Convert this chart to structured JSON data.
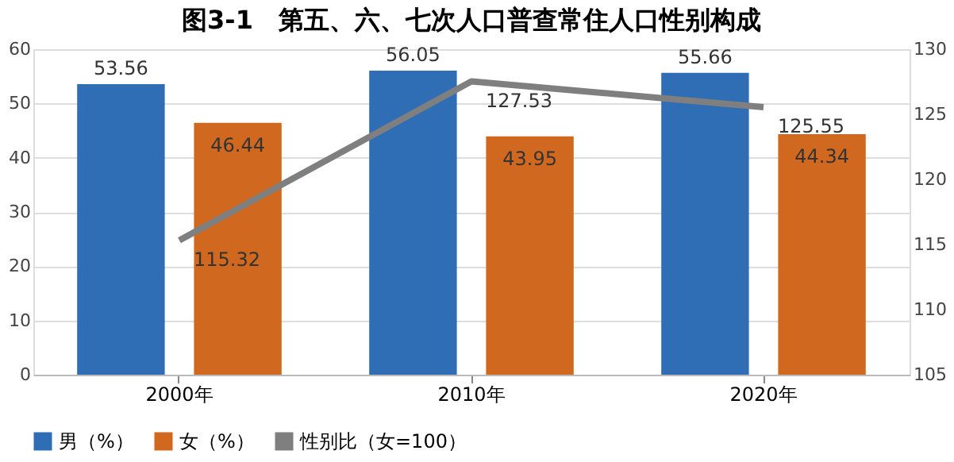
{
  "chart_data": {
    "type": "bar",
    "title": "图3-1　第五、六、七次人口普查常住人口性别构成",
    "categories": [
      "2000年",
      "2010年",
      "2020年"
    ],
    "series": [
      {
        "name": "男（%）",
        "color": "#2f6eb5",
        "values": [
          53.56,
          56.05,
          55.66
        ]
      },
      {
        "name": "女（%）",
        "color": "#d0691f",
        "values": [
          46.44,
          43.95,
          44.34
        ]
      },
      {
        "name": "性别比（女=100）",
        "type": "line",
        "axis": "y2",
        "color": "#7f7f7f",
        "values": [
          115.32,
          127.53,
          125.55
        ]
      }
    ],
    "ylim": [
      0,
      60
    ],
    "yticks": [
      0,
      10,
      20,
      30,
      40,
      50,
      60
    ],
    "y2lim": [
      105,
      130
    ],
    "y2ticks": [
      105,
      110,
      115,
      120,
      125,
      130
    ],
    "data_labels": true,
    "grid": "y",
    "legend": "bottom",
    "marker": "none",
    "line_style": "solid"
  }
}
